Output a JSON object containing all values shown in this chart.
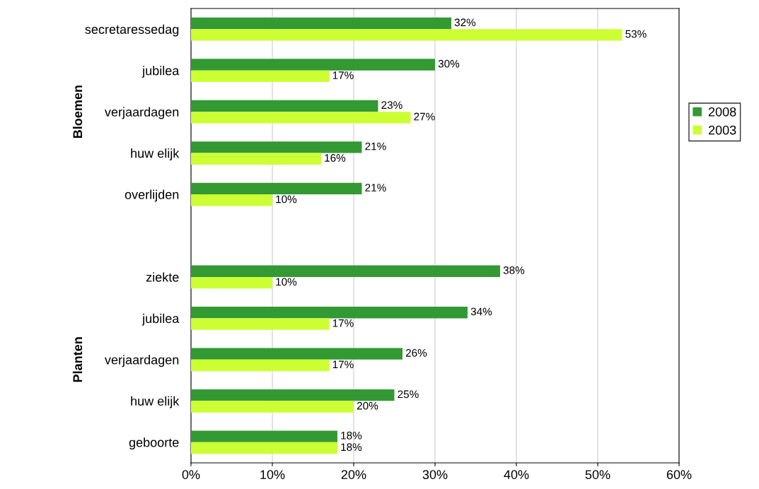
{
  "chart_data": {
    "type": "bar",
    "orientation": "horizontal",
    "categories": [
      "secretaressedag",
      "jubilea",
      "verjaardagen",
      "huw elijk",
      "overlijden",
      null,
      "ziekte",
      "jubilea",
      "verjaardagen",
      "huw elijk",
      "geboorte"
    ],
    "series": [
      {
        "name": "2008",
        "color": "#339933",
        "values": [
          32,
          30,
          23,
          21,
          21,
          null,
          38,
          34,
          26,
          25,
          18
        ],
        "value_labels": [
          "32%",
          "30%",
          "23%",
          "21%",
          "21%",
          null,
          "38%",
          "34%",
          "26%",
          "25%",
          "18%"
        ]
      },
      {
        "name": "2003",
        "color": "#ccff33",
        "values": [
          53,
          17,
          27,
          16,
          10,
          null,
          10,
          17,
          17,
          20,
          18
        ],
        "value_labels": [
          "53%",
          "17%",
          "27%",
          "16%",
          "10%",
          null,
          "10%",
          "17%",
          "17%",
          "20%",
          "18%"
        ]
      }
    ],
    "xlim": [
      0,
      60
    ],
    "xticks": [
      {
        "value": 0,
        "label": "0%"
      },
      {
        "value": 10,
        "label": "10%"
      },
      {
        "value": 20,
        "label": "20%"
      },
      {
        "value": 30,
        "label": "30%"
      },
      {
        "value": 40,
        "label": "40%"
      },
      {
        "value": 50,
        "label": "50%"
      },
      {
        "value": 60,
        "label": "60%"
      }
    ],
    "annotations": [
      "Bloemen",
      "Planten"
    ],
    "grid": "x",
    "legend": "right"
  }
}
